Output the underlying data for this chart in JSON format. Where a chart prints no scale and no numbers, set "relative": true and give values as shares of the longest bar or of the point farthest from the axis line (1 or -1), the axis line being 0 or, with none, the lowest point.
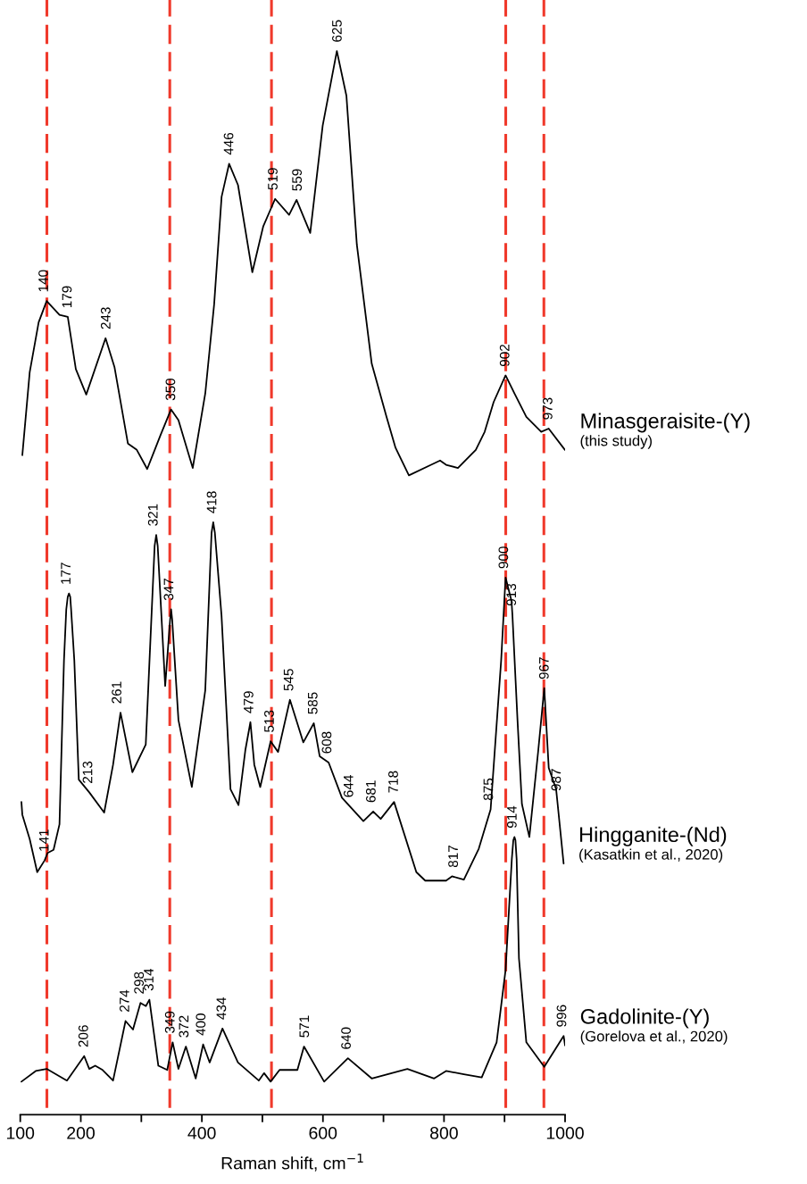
{
  "chart_data": {
    "type": "line",
    "relative": true,
    "xlabel": "Raman shift, cm$^{−1}$",
    "xlim": [
      100,
      1000
    ],
    "xticks": [
      100,
      200,
      {
        "value": 300,
        "label": null
      },
      400,
      {
        "value": 500,
        "label": null
      },
      600,
      {
        "value": 700,
        "label": null
      },
      800,
      {
        "value": 900,
        "label": null
      },
      1000
    ],
    "grid": false,
    "legend": false,
    "tick_labels": "x",
    "line_style": "solid",
    "marker": "none",
    "ref_lines": [
      {
        "axis": "x",
        "value": 144,
        "color": "#f0392b",
        "line_style": "dashed"
      },
      {
        "axis": "x",
        "value": 347,
        "color": "#f0392b",
        "line_style": "dashed"
      },
      {
        "axis": "x",
        "value": 515,
        "color": "#f0392b",
        "line_style": "dashed"
      },
      {
        "axis": "x",
        "value": 902,
        "color": "#f0392b",
        "line_style": "dashed"
      },
      {
        "axis": "x",
        "value": 965,
        "color": "#f0392b",
        "line_style": "dashed"
      }
    ],
    "series": [
      {
        "name": "Minasgeraisite-(Y)\n(this study)",
        "color": "#000000",
        "x": [
          103.4,
          115.6,
          130.4,
          143.6,
          164.8,
          178.5,
          191.8,
          209,
          240.9,
          255.6,
          277.8,
          292.5,
          309.7,
          331.8,
          349,
          361.3,
          384.9,
          405.6,
          420.3,
          432.6,
          445,
          459.7,
          483.3,
          501.3,
          521,
          544.1,
          556.4,
          579,
          599.6,
          623,
          638.8,
          656,
          680.6,
          705.1,
          719.9,
          742,
          778.8,
          793.5,
          803.4,
          823,
          852.5,
          867.2,
          882,
          901.7,
          916.4,
          936,
          960.6,
          972.9,
          999.8
        ],
        "values": [
          0.62,
          0.698,
          0.745,
          0.765,
          0.752,
          0.75,
          0.701,
          0.677,
          0.73,
          0.703,
          0.631,
          0.625,
          0.607,
          0.639,
          0.663,
          0.653,
          0.608,
          0.678,
          0.762,
          0.863,
          0.894,
          0.874,
          0.792,
          0.835,
          0.861,
          0.846,
          0.86,
          0.829,
          0.93,
          1.0,
          0.958,
          0.818,
          0.706,
          0.656,
          0.627,
          0.601,
          0.611,
          0.615,
          0.611,
          0.608,
          0.625,
          0.642,
          0.67,
          0.695,
          0.678,
          0.656,
          0.642,
          0.645,
          0.625
        ]
      },
      {
        "name": "Hingganite-(Nd)\n(Kasatkin et al., 2020)",
        "color": "#000000",
        "x": [
          101.9,
          103.4,
          115.6,
          128,
          140.2,
          145.1,
          155,
          164.8,
          172.2,
          176,
          178.5,
          180.5,
          182.5,
          184,
          189.3,
          196.7,
          214,
          238.6,
          253.3,
          265.6,
          285.2,
          307.3,
          322,
          324.6,
          327,
          339.4,
          347.5,
          349.2,
          351,
          361.3,
          383.4,
          405.6,
          416,
          418.8,
          421.5,
          432.5,
          447.3,
          460.5,
          471.9,
          480.2,
          486.6,
          496.4,
          513.6,
          525.9,
          545.5,
          567.6,
          584.9,
          594.6,
          609.4,
          631.4,
          666.8,
          683,
          695.4,
          717.5,
          754.3,
          769,
          803.4,
          813.2,
          832.8,
          857.4,
          877,
          894.4,
          901.7,
          911.5,
          913,
          921.4,
          928.7,
          941,
          955.8,
          965.6,
          973,
          985.2,
          987,
          997.6
        ],
        "values": [
          0.294,
          0.282,
          0.259,
          0.228,
          0.239,
          0.246,
          0.249,
          0.273,
          0.427,
          0.475,
          0.487,
          0.49,
          0.487,
          0.475,
          0.427,
          0.315,
          0.303,
          0.284,
          0.329,
          0.378,
          0.322,
          0.348,
          0.535,
          0.545,
          0.535,
          0.403,
          0.465,
          0.475,
          0.465,
          0.371,
          0.308,
          0.399,
          0.547,
          0.557,
          0.547,
          0.469,
          0.306,
          0.291,
          0.343,
          0.369,
          0.329,
          0.308,
          0.351,
          0.341,
          0.39,
          0.35,
          0.368,
          0.337,
          0.331,
          0.298,
          0.276,
          0.285,
          0.278,
          0.294,
          0.228,
          0.22,
          0.22,
          0.224,
          0.221,
          0.25,
          0.287,
          0.427,
          0.505,
          0.483,
          0.47,
          0.371,
          0.292,
          0.261,
          0.343,
          0.401,
          0.326,
          0.306,
          0.296,
          0.236
        ]
      },
      {
        "name": "Gadolinite-(Y)\n(Gorelova et al., 2020)",
        "color": "#000000",
        "x": [
          101.9,
          125.5,
          143.6,
          177.1,
          205.6,
          214,
          223.8,
          236,
          253.3,
          273.9,
          286.2,
          298.6,
          307.5,
          313.3,
          328.1,
          342.8,
          351.7,
          361.3,
          373.6,
          389.8,
          402.1,
          412.9,
          434,
          459.6,
          494,
          502.8,
          513.6,
          528.3,
          557.8,
          568.7,
          602,
          641.3,
          680.6,
          739.5,
          783.7,
          803.4,
          832.8,
          862.3,
          886.9,
          901.7,
          912,
          914.5,
          916.4,
          918,
          920,
          923.8,
          936,
          965.6,
          997.6,
          1000
        ],
        "values": [
          0.031,
          0.041,
          0.043,
          0.032,
          0.055,
          0.043,
          0.046,
          0.042,
          0.032,
          0.088,
          0.08,
          0.105,
          0.102,
          0.108,
          0.046,
          0.042,
          0.068,
          0.043,
          0.064,
          0.034,
          0.066,
          0.049,
          0.081,
          0.049,
          0.032,
          0.039,
          0.031,
          0.042,
          0.042,
          0.064,
          0.031,
          0.053,
          0.034,
          0.043,
          0.034,
          0.041,
          0.038,
          0.035,
          0.068,
          0.136,
          0.24,
          0.258,
          0.261,
          0.258,
          0.24,
          0.147,
          0.068,
          0.045,
          0.074,
          0.065
        ]
      }
    ],
    "annotations": [
      {
        "text": "140",
        "x": 140,
        "y": 0.765
      },
      {
        "text": "179",
        "x": 179,
        "y": 0.75
      },
      {
        "text": "243",
        "x": 243,
        "y": 0.73
      },
      {
        "text": "350",
        "x": 350,
        "y": 0.663
      },
      {
        "text": "446",
        "x": 446,
        "y": 0.894
      },
      {
        "text": "519",
        "x": 519,
        "y": 0.861
      },
      {
        "text": "559",
        "x": 559,
        "y": 0.86
      },
      {
        "text": "625",
        "x": 625,
        "y": 1.0
      },
      {
        "text": "902",
        "x": 902,
        "y": 0.695
      },
      {
        "text": "973",
        "x": 973,
        "y": 0.645
      },
      {
        "text": "141",
        "x": 141,
        "y": 0.239
      },
      {
        "text": "177",
        "x": 177,
        "y": 0.49
      },
      {
        "text": "213",
        "x": 213,
        "y": 0.303
      },
      {
        "text": "261",
        "x": 261,
        "y": 0.378
      },
      {
        "text": "321",
        "x": 321,
        "y": 0.545
      },
      {
        "text": "347",
        "x": 347,
        "y": 0.475
      },
      {
        "text": "418",
        "x": 418,
        "y": 0.557
      },
      {
        "text": "479",
        "x": 479,
        "y": 0.369
      },
      {
        "text": "513",
        "x": 513,
        "y": 0.351
      },
      {
        "text": "545",
        "x": 545,
        "y": 0.39
      },
      {
        "text": "585",
        "x": 585,
        "y": 0.368
      },
      {
        "text": "608",
        "x": 608,
        "y": 0.331
      },
      {
        "text": "644",
        "x": 644,
        "y": 0.29
      },
      {
        "text": "681",
        "x": 681,
        "y": 0.285
      },
      {
        "text": "718",
        "x": 718,
        "y": 0.294
      },
      {
        "text": "817",
        "x": 817,
        "y": 0.224
      },
      {
        "text": "875",
        "x": 875,
        "y": 0.287
      },
      {
        "text": "900",
        "x": 900,
        "y": 0.505
      },
      {
        "text": "913",
        "x": 913,
        "y": 0.47
      },
      {
        "text": "967",
        "x": 967,
        "y": 0.401
      },
      {
        "text": "987",
        "x": 987,
        "y": 0.296
      },
      {
        "text": "206",
        "x": 206,
        "y": 0.055
      },
      {
        "text": "274",
        "x": 274,
        "y": 0.088
      },
      {
        "text": "298",
        "x": 298,
        "y": 0.105
      },
      {
        "text": "314",
        "x": 314,
        "y": 0.108
      },
      {
        "text": "349",
        "x": 349,
        "y": 0.068
      },
      {
        "text": "372",
        "x": 372,
        "y": 0.064
      },
      {
        "text": "400",
        "x": 400,
        "y": 0.066
      },
      {
        "text": "434",
        "x": 434,
        "y": 0.081
      },
      {
        "text": "571",
        "x": 571,
        "y": 0.064
      },
      {
        "text": "640",
        "x": 640,
        "y": 0.053
      },
      {
        "text": "914",
        "x": 914,
        "y": 0.261
      },
      {
        "text": "996",
        "x": 996,
        "y": 0.074
      }
    ]
  }
}
